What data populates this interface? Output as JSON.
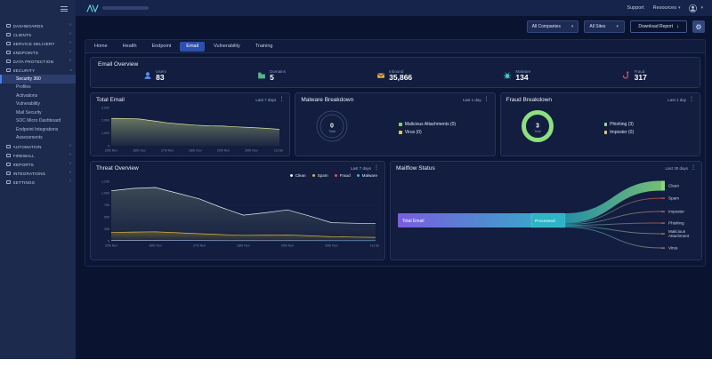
{
  "topbar": {
    "support": "Support",
    "resources": "Resources"
  },
  "toolbar": {
    "companies_filter": "All Companies",
    "sites_filter": "All Sites",
    "download_report": "Download Report"
  },
  "sidebar": {
    "items": [
      {
        "label": "DASHBOARDS",
        "icon": "dashboards-icon",
        "type": "top"
      },
      {
        "label": "CLIENTS",
        "icon": "clients-icon",
        "type": "top"
      },
      {
        "label": "SERVICE DELIVERY",
        "icon": "service-delivery-icon",
        "type": "top"
      },
      {
        "label": "ENDPOINTS",
        "icon": "endpoints-icon",
        "type": "top"
      },
      {
        "label": "DATA PROTECTION",
        "icon": "data-protection-icon",
        "type": "top"
      },
      {
        "label": "SECURITY",
        "icon": "security-icon",
        "type": "top",
        "expanded": true
      },
      {
        "label": "Security 360",
        "type": "sub",
        "active": true
      },
      {
        "label": "Profiles",
        "type": "sub"
      },
      {
        "label": "Activations",
        "type": "sub"
      },
      {
        "label": "Vulnerability",
        "type": "sub"
      },
      {
        "label": "Mail Security",
        "type": "sub"
      },
      {
        "label": "SOC Micro Dashboard",
        "type": "sub"
      },
      {
        "label": "Endpoint Integrations",
        "type": "sub"
      },
      {
        "label": "Assessments",
        "type": "sub"
      },
      {
        "label": "AUTOMATION",
        "icon": "automation-icon",
        "type": "top"
      },
      {
        "label": "FIREWALL",
        "icon": "firewall-icon",
        "type": "top"
      },
      {
        "label": "REPORTS",
        "icon": "reports-icon",
        "type": "top"
      },
      {
        "label": "INTEGRATIONS",
        "icon": "integrations-icon",
        "type": "top"
      },
      {
        "label": "SETTINGS",
        "icon": "settings-icon",
        "type": "top"
      }
    ]
  },
  "tabs": {
    "items": [
      "Home",
      "Health",
      "Endpoint",
      "Email",
      "Vulnerability",
      "Training"
    ],
    "active": "Email"
  },
  "overview": {
    "title": "Email Overview",
    "stats": [
      {
        "label": "Users",
        "value": "83",
        "color": "#5b8def"
      },
      {
        "label": "Domains",
        "value": "5",
        "color": "#52b788"
      },
      {
        "label": "Inbound",
        "value": "35,866",
        "color": "#e7b041"
      },
      {
        "label": "Malware",
        "value": "134",
        "color": "#38c6c6"
      },
      {
        "label": "Fraud",
        "value": "317",
        "color": "#e25b70"
      }
    ]
  },
  "chart_data": [
    {
      "id": "total-email",
      "type": "area",
      "title": "Total Email",
      "period": "Last 7 days",
      "x": [
        "25th Nov",
        "26th Nov",
        "27th Nov",
        "28th Nov",
        "29th Nov",
        "30th Nov",
        "1st Dec"
      ],
      "series": [
        {
          "name": "Total Email",
          "color": "#d9e3a0",
          "fill": "#aebc7a",
          "values": [
            2150,
            2140,
            2100,
            1950,
            1800,
            1700,
            1620,
            1560,
            1540,
            1480,
            1430,
            1370,
            1290
          ]
        }
      ],
      "ylim": [
        0,
        3000
      ],
      "yticks": [
        0,
        1000,
        2000,
        3000
      ],
      "grid": true,
      "legend": "none"
    },
    {
      "id": "malware-breakdown",
      "type": "donut",
      "title": "Malware Breakdown",
      "period": "Last 1 day",
      "total": 0,
      "total_label": "Total",
      "segments": [
        {
          "label": "Malicious Attachments (0)",
          "value": 0,
          "color": "#7ed957"
        },
        {
          "label": "Virus (0)",
          "value": 0,
          "color": "#e8c547"
        }
      ],
      "empty_ring_color": "#44537a",
      "legend": "right"
    },
    {
      "id": "fraud-breakdown",
      "type": "donut",
      "title": "Fraud Breakdown",
      "period": "Last 1 day",
      "total": 3,
      "total_label": "Total",
      "segments": [
        {
          "label": "Phishing (3)",
          "value": 3,
          "color": "#8ee07e"
        },
        {
          "label": "Imposter (0)",
          "value": 0,
          "color": "#e8c547"
        }
      ],
      "empty_ring_color": "#44537a",
      "legend": "right"
    },
    {
      "id": "threat-overview",
      "type": "area",
      "title": "Threat Overview",
      "period": "Last 7 days",
      "x": [
        "25th Nov",
        "26th Nov",
        "27th Nov",
        "28th Nov",
        "29th Nov",
        "30th Nov",
        "1st Dec"
      ],
      "series": [
        {
          "name": "Clean",
          "color": "#e6edf5",
          "fill": "#5c6b66",
          "values": [
            1050,
            1100,
            1120,
            1000,
            880,
            700,
            540,
            590,
            650,
            520,
            380,
            370,
            360
          ]
        },
        {
          "name": "Spam",
          "color": "#d9b545",
          "fill": "#8a7a30",
          "values": [
            175,
            185,
            190,
            170,
            150,
            130,
            115,
            120,
            125,
            105,
            85,
            78,
            72
          ]
        },
        {
          "name": "Fraud",
          "color": "#e0564f",
          "fill": "#e0564f",
          "values": [
            12,
            12,
            11,
            10,
            9,
            8,
            8,
            8,
            8,
            7,
            6,
            5,
            5
          ]
        },
        {
          "name": "Malware",
          "color": "#49a8e8",
          "fill": "#49a8e8",
          "values": [
            6,
            6,
            6,
            5,
            5,
            4,
            4,
            4,
            4,
            3,
            3,
            3,
            3
          ]
        }
      ],
      "ylim": [
        0,
        1250
      ],
      "yticks": [
        0,
        250,
        500,
        750,
        1000,
        1250
      ],
      "grid": true,
      "legend": "top-right"
    },
    {
      "id": "mailflow-status",
      "type": "sankey",
      "title": "Mailflow Status",
      "period": "Last 30 days",
      "source": {
        "label": "Total Email",
        "color_start": "#7a5ce0",
        "color_end": "#2db4c6"
      },
      "middle": {
        "label": "Processed",
        "color": "#2db4c6"
      },
      "targets": [
        {
          "label": "Clean",
          "lines": [
            "Clean"
          ],
          "value": 90,
          "color": "#86d97c",
          "y": 13
        },
        {
          "label": "Spam",
          "lines": [
            "Spam"
          ],
          "value": 4,
          "color": "#e05545",
          "y": 27
        },
        {
          "label": "Imposter",
          "lines": [
            "Imposter"
          ],
          "value": 2,
          "color": "#c87f55",
          "y": 42
        },
        {
          "label": "Phishing",
          "lines": [
            "Phishing"
          ],
          "value": 2,
          "color": "#d0685a",
          "y": 55
        },
        {
          "label": "Malicious Attachment",
          "lines": [
            "Malicious",
            "Attachment"
          ],
          "value": 2,
          "color": "#b9906b",
          "y": 67
        },
        {
          "label": "Virus",
          "lines": [
            "Virus"
          ],
          "value": 2,
          "color": "#a98f76",
          "y": 83
        }
      ]
    }
  ]
}
